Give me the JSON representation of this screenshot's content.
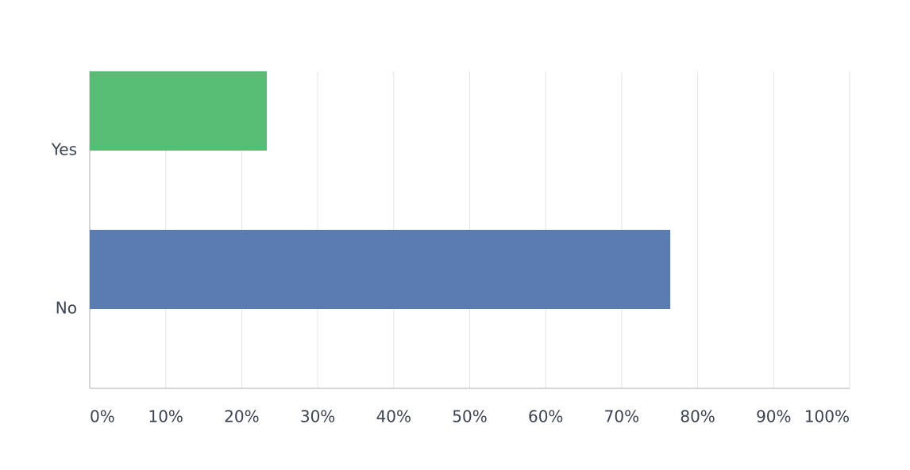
{
  "chart_data": {
    "type": "bar",
    "orientation": "horizontal",
    "categories": [
      "Yes",
      "No"
    ],
    "values": [
      23.3,
      76.4
    ],
    "colors": [
      "#57bd75",
      "#5b7cb0"
    ],
    "xlim": [
      0,
      100
    ],
    "xticks": [
      {
        "value": 0,
        "label": "0%"
      },
      {
        "value": 10,
        "label": "10%"
      },
      {
        "value": 20,
        "label": "20%"
      },
      {
        "value": 30,
        "label": "30%"
      },
      {
        "value": 40,
        "label": "40%"
      },
      {
        "value": 50,
        "label": "50%"
      },
      {
        "value": 60,
        "label": "60%"
      },
      {
        "value": 70,
        "label": "70%"
      },
      {
        "value": 80,
        "label": "80%"
      },
      {
        "value": 90,
        "label": "90%"
      },
      {
        "value": 100,
        "label": "100%"
      }
    ],
    "grid": true
  }
}
